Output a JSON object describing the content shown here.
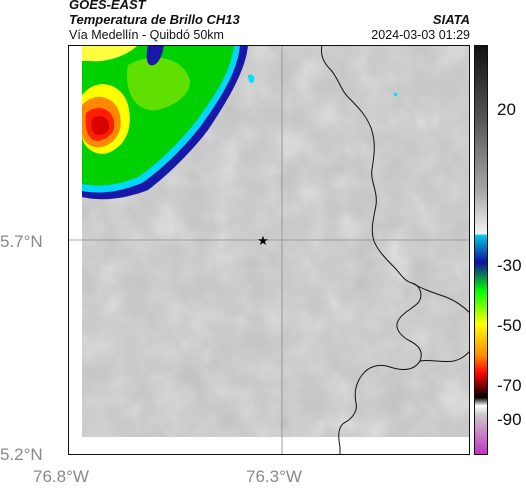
{
  "header": {
    "satellite": "GOES-EAST",
    "product": "Temperatura de Brillo CH13",
    "subtitle": "Vía Medellín - Quibdó 50km",
    "organization": "SIATA",
    "timestamp": "2024-03-03 01:29"
  },
  "map": {
    "lat_labels": [
      "5.7°N",
      "5.2°N"
    ],
    "lon_labels": [
      "76.8°W",
      "76.3°W"
    ],
    "marker_icon": "star-icon",
    "background_color": "#c4c4c4",
    "border_color": "#111111",
    "grid_color": "#8a8a8a"
  },
  "colorbar": {
    "ticks": [
      "20",
      "-30",
      "-50",
      "-70",
      "-90"
    ],
    "colors": [
      "#111111",
      "#555555",
      "#aaaaaa",
      "#ffffff",
      "#00c8e0",
      "#1010a0",
      "#00ff00",
      "#ffff00",
      "#ff0000",
      "#000000",
      "#c030c0"
    ]
  }
}
